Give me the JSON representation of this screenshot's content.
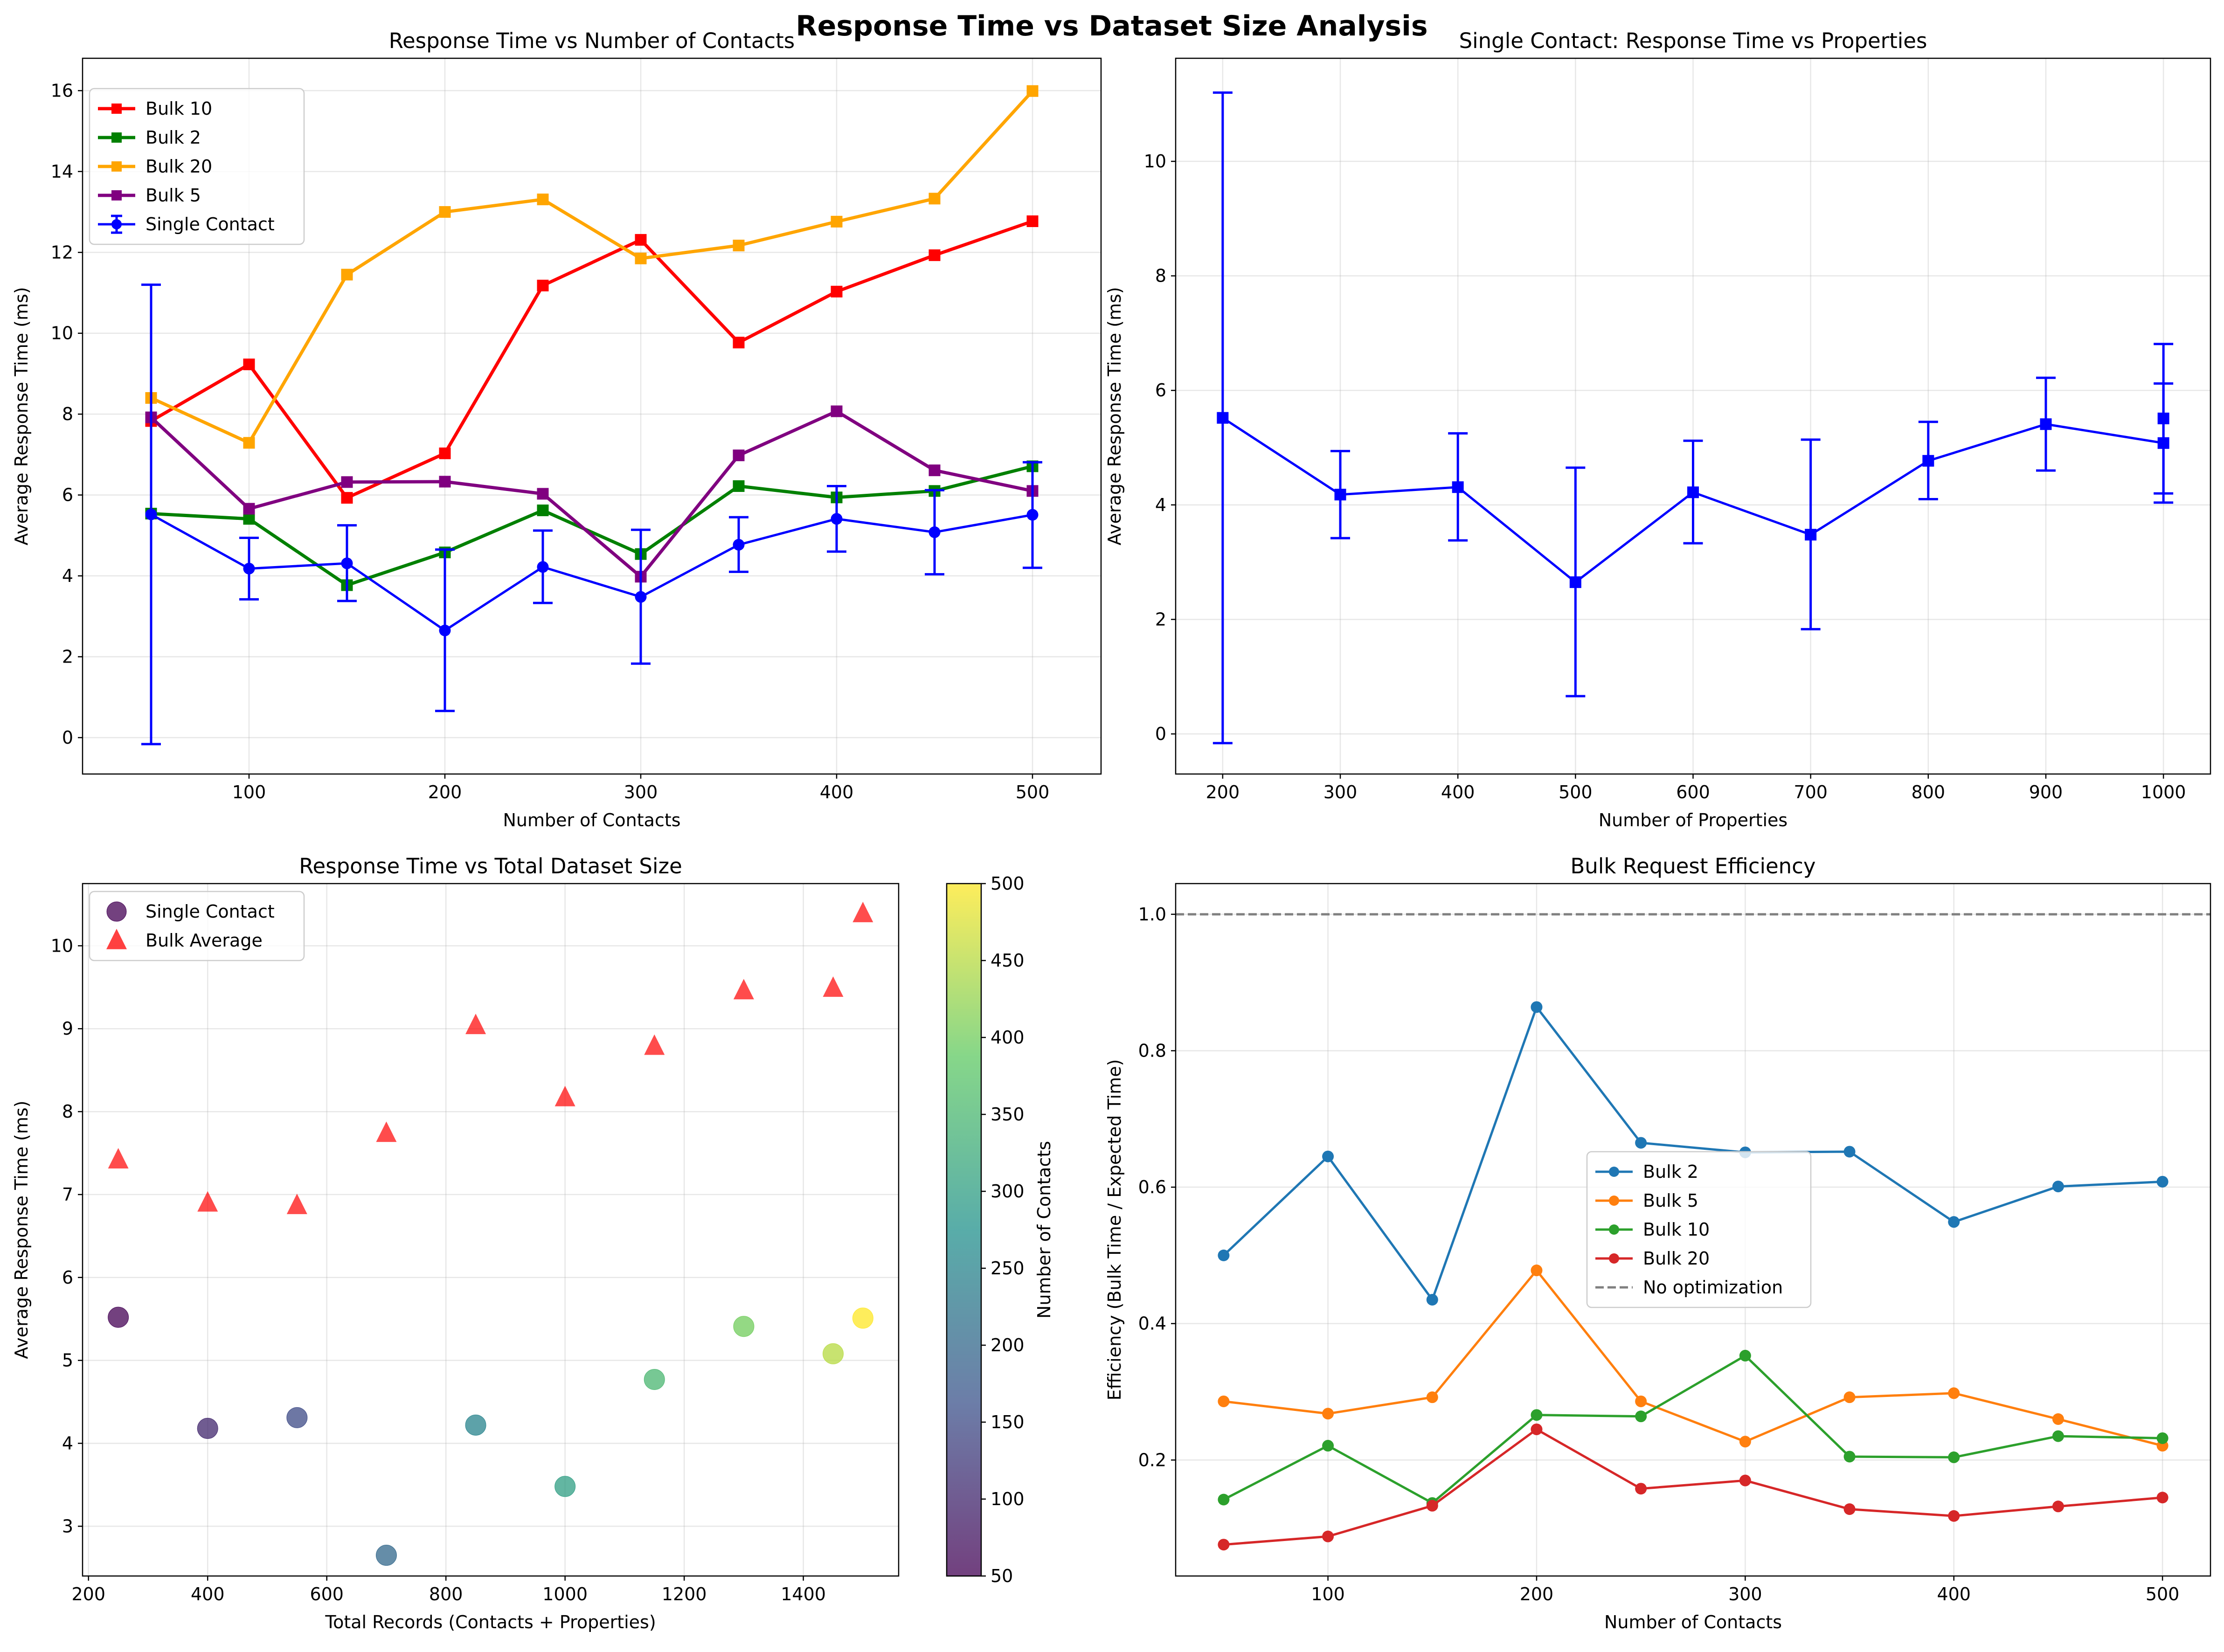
{
  "figure": {
    "title": "Response Time vs Dataset Size Analysis"
  },
  "chart_data": [
    {
      "id": "ax1",
      "type": "line",
      "title": "Response Time vs Number of Contacts",
      "xlabel": "Number of Contacts",
      "ylabel": "Average Response Time (ms)",
      "xlim": [
        15,
        535
      ],
      "ylim": [
        -0.9,
        16.8
      ],
      "xticks": [
        100,
        200,
        300,
        400,
        500
      ],
      "yticks": [
        0,
        2,
        4,
        6,
        8,
        10,
        12,
        14,
        16
      ],
      "grid": true,
      "legend_position": "upper-left",
      "x": [
        50,
        100,
        150,
        200,
        250,
        300,
        350,
        400,
        450,
        500
      ],
      "series": [
        {
          "name": "Bulk 10",
          "color": "#ff0000",
          "marker": "square",
          "values": [
            7.83,
            9.23,
            5.93,
            7.03,
            11.18,
            12.31,
            9.77,
            11.03,
            11.93,
            12.77
          ]
        },
        {
          "name": "Bulk 2",
          "color": "#008000",
          "marker": "square",
          "values": [
            5.54,
            5.41,
            3.77,
            4.58,
            5.62,
            4.54,
            6.22,
            5.94,
            6.1,
            6.71
          ]
        },
        {
          "name": "Bulk 20",
          "color": "#ffa500",
          "marker": "square",
          "values": [
            8.4,
            7.29,
            11.45,
            13.0,
            13.31,
            11.85,
            12.17,
            12.76,
            13.33,
            15.99
          ]
        },
        {
          "name": "Bulk 5",
          "color": "#800080",
          "marker": "square",
          "values": [
            7.92,
            5.66,
            6.32,
            6.33,
            6.03,
            3.98,
            6.98,
            8.07,
            6.61,
            6.1
          ]
        },
        {
          "name": "Single Contact",
          "color": "#0000ff",
          "marker": "circle",
          "errorbars": true,
          "values": [
            5.52,
            4.18,
            4.31,
            2.65,
            4.22,
            3.48,
            4.77,
            5.41,
            5.08,
            5.51
          ],
          "err_low": [
            -0.16,
            3.42,
            3.38,
            0.66,
            3.33,
            1.83,
            4.1,
            4.6,
            4.04,
            4.2
          ],
          "err_high": [
            11.2,
            4.94,
            5.25,
            4.65,
            5.12,
            5.14,
            5.45,
            6.22,
            6.12,
            6.81
          ]
        }
      ]
    },
    {
      "id": "ax2",
      "type": "line",
      "title": "Single Contact: Response Time vs Properties",
      "xlabel": "Number of Properties",
      "ylabel": "Average Response Time (ms)",
      "xlim": [
        160,
        1040
      ],
      "ylim": [
        -0.7,
        11.8
      ],
      "xticks": [
        200,
        300,
        400,
        500,
        600,
        700,
        800,
        900,
        1000
      ],
      "yticks": [
        0,
        2,
        4,
        6,
        8,
        10
      ],
      "grid": true,
      "series": [
        {
          "name": "",
          "color": "#0000ff",
          "marker": "square",
          "errorbars": true,
          "x": [
            200,
            300,
            400,
            500,
            600,
            700,
            800,
            900,
            1000
          ],
          "values": [
            5.52,
            4.18,
            4.31,
            2.65,
            4.22,
            3.48,
            4.77,
            5.41,
            5.08
          ],
          "err_low": [
            -0.16,
            3.42,
            3.38,
            0.66,
            3.33,
            1.83,
            4.1,
            4.6,
            4.04
          ],
          "err_high": [
            11.2,
            4.94,
            5.25,
            4.65,
            5.12,
            5.14,
            5.45,
            6.22,
            6.12
          ]
        },
        {
          "name": "",
          "color": "#0000ff",
          "marker": "square",
          "errorbars": true,
          "connect": false,
          "x": [
            1000
          ],
          "values": [
            5.51
          ],
          "err_low": [
            4.2
          ],
          "err_high": [
            6.81
          ]
        }
      ]
    },
    {
      "id": "ax3",
      "type": "scatter",
      "title": "Response Time vs Total Dataset Size",
      "xlabel": "Total Records (Contacts + Properties)",
      "ylabel": "Average Response Time (ms)",
      "xlim": [
        190,
        1560
      ],
      "ylim": [
        2.4,
        10.75
      ],
      "xticks": [
        200,
        400,
        600,
        800,
        1000,
        1200,
        1400
      ],
      "yticks": [
        3,
        4,
        5,
        6,
        7,
        8,
        9,
        10
      ],
      "grid": true,
      "legend_position": "upper-left",
      "series": [
        {
          "name": "Single Contact",
          "marker": "circle",
          "color": "#440154",
          "x": [
            250,
            400,
            550,
            700,
            850,
            1000,
            1150,
            1300,
            1450,
            1500
          ],
          "values": [
            5.52,
            4.18,
            4.31,
            2.65,
            4.22,
            3.48,
            4.77,
            5.41,
            5.08,
            5.51
          ],
          "contacts": [
            50,
            100,
            150,
            200,
            250,
            300,
            350,
            400,
            450,
            500
          ]
        },
        {
          "name": "Bulk Average",
          "marker": "triangle",
          "color": "#ff0000",
          "x": [
            250,
            400,
            550,
            700,
            850,
            1000,
            1150,
            1300,
            1450,
            1500
          ],
          "values": [
            7.42,
            6.9,
            6.87,
            7.74,
            9.04,
            8.17,
            8.79,
            9.46,
            9.49,
            10.39
          ]
        }
      ],
      "colorbar": {
        "label": "Number of Contacts",
        "min": 50,
        "max": 500,
        "ticks": [
          50,
          100,
          150,
          200,
          250,
          300,
          350,
          400,
          450,
          500
        ],
        "colormap": "viridis"
      }
    },
    {
      "id": "ax4",
      "type": "line",
      "title": "Bulk Request Efficiency",
      "xlabel": "Number of Contacts",
      "ylabel": "Efficiency (Bulk Time / Expected Time)",
      "xlim": [
        27,
        523
      ],
      "ylim": [
        0.03,
        1.045
      ],
      "xticks": [
        100,
        200,
        300,
        400,
        500
      ],
      "yticks": [
        0.2,
        0.4,
        0.6,
        0.8,
        1.0
      ],
      "grid": true,
      "legend_position": "center-right",
      "x": [
        50,
        100,
        150,
        200,
        250,
        300,
        350,
        400,
        450,
        500
      ],
      "series": [
        {
          "name": "Bulk 2",
          "color": "#1f77b4",
          "marker": "circle",
          "values": [
            0.5,
            0.645,
            0.435,
            0.864,
            0.665,
            0.651,
            0.652,
            0.549,
            0.601,
            0.608
          ]
        },
        {
          "name": "Bulk 5",
          "color": "#ff7f0e",
          "marker": "circle",
          "values": [
            0.286,
            0.268,
            0.292,
            0.478,
            0.286,
            0.227,
            0.292,
            0.298,
            0.26,
            0.221
          ]
        },
        {
          "name": "Bulk 10",
          "color": "#2ca02c",
          "marker": "circle",
          "values": [
            0.142,
            0.221,
            0.137,
            0.266,
            0.264,
            0.353,
            0.205,
            0.204,
            0.235,
            0.232
          ]
        },
        {
          "name": "Bulk 20",
          "color": "#d62728",
          "marker": "circle",
          "values": [
            0.076,
            0.088,
            0.133,
            0.245,
            0.158,
            0.17,
            0.128,
            0.118,
            0.132,
            0.145
          ]
        }
      ],
      "reference_line": {
        "name": "No optimization",
        "value": 1.0,
        "color": "#808080",
        "style": "dashed"
      }
    }
  ]
}
